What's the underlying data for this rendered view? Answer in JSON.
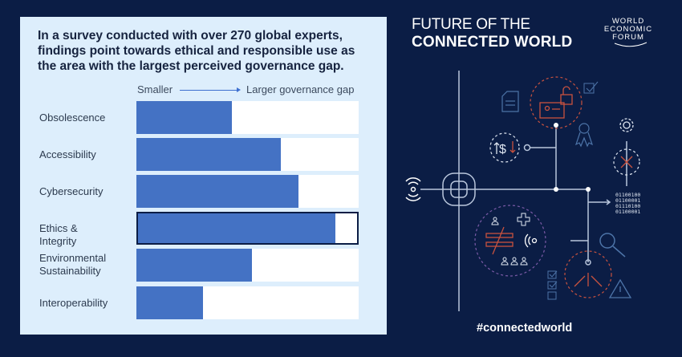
{
  "headline": "In a survey conducted with over 270 global experts, findings point towards ethical and responsible use as the area with the largest perceived governance gap.",
  "scale": {
    "left": "Smaller",
    "right": "Larger governance gap"
  },
  "chart_data": {
    "type": "bar",
    "orientation": "horizontal",
    "categories": [
      "Obsolescence",
      "Accessibility",
      "Cybersecurity",
      "Ethics & Integrity",
      "Environmental Sustainability",
      "Interoperability"
    ],
    "values": [
      43,
      65,
      73,
      90,
      52,
      30
    ],
    "value_unit": "percent of scale (relative governance gap, no numeric axis shown)",
    "highlighted": "Ethics & Integrity",
    "xlim": [
      0,
      100
    ],
    "grid": false,
    "colors": {
      "bar": "#4472c4",
      "track": "#ffffff",
      "highlight_border": "#0b1d45"
    }
  },
  "brand": {
    "title_line1": "FUTURE OF THE",
    "title_line2": "CONNECTED  WORLD",
    "logo_lines": [
      "WORLD",
      "ECONOMIC",
      "FORUM"
    ],
    "hashtag": "#connectedworld",
    "binary": [
      "01100100",
      "01100001",
      "01110100",
      "01100001"
    ]
  },
  "colors": {
    "background": "#0b1d45",
    "panel": "#ddeefc",
    "accent_red": "#c8523f"
  }
}
